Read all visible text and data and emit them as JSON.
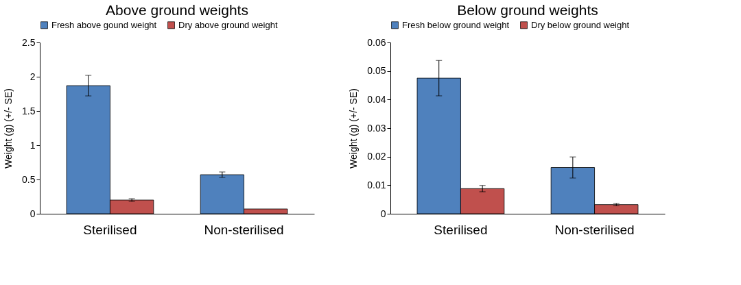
{
  "chart_data": [
    {
      "type": "bar",
      "title": "Above ground weights",
      "ylabel": "Weight (g) (+/- SE)",
      "categories": [
        "Sterilised",
        "Non-sterilised"
      ],
      "series": [
        {
          "name": "Fresh above gound weight",
          "color": "#4f81bd",
          "values": [
            1.87,
            0.57
          ],
          "errors": [
            0.15,
            0.04
          ]
        },
        {
          "name": "Dry above ground weight",
          "color": "#c0504d",
          "values": [
            0.2,
            0.07
          ],
          "errors": [
            0.02,
            null
          ]
        }
      ],
      "ylim": [
        0,
        2.5
      ],
      "yticks": [
        0,
        0.5,
        1,
        1.5,
        2,
        2.5
      ],
      "legend": "top",
      "grid": false
    },
    {
      "type": "bar",
      "title": "Below ground weights",
      "ylabel": "Weight (g) (+/- SE)",
      "categories": [
        "Sterilised",
        "Non-sterilised"
      ],
      "series": [
        {
          "name": "Fresh below ground weight",
          "color": "#4f81bd",
          "values": [
            0.0475,
            0.0162
          ],
          "errors": [
            0.0062,
            0.0037
          ]
        },
        {
          "name": "Dry below ground weight",
          "color": "#c0504d",
          "values": [
            0.0088,
            0.0032
          ],
          "errors": [
            0.0011,
            0.0004
          ]
        }
      ],
      "ylim": [
        0,
        0.06
      ],
      "yticks": [
        0,
        0.01,
        0.02,
        0.03,
        0.04,
        0.05,
        0.06
      ],
      "legend": "top",
      "grid": false
    }
  ]
}
